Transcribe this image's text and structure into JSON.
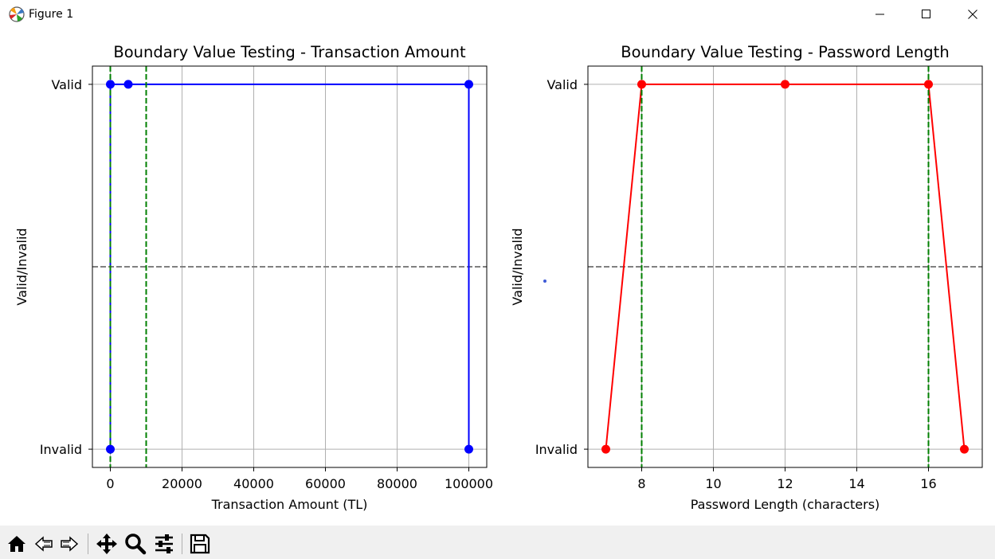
{
  "window": {
    "title": "Figure 1"
  },
  "icons": {
    "app": "matplotlib-icon",
    "minimize": "minimize-icon",
    "maximize": "maximize-icon",
    "close": "close-icon"
  },
  "toolbar": {
    "items": [
      "home-icon",
      "back-icon",
      "forward-icon",
      "pan-icon",
      "zoom-icon",
      "configure-subplots-icon",
      "save-icon"
    ]
  },
  "chart_data": [
    {
      "type": "line",
      "title": "Boundary Value Testing - Transaction Amount",
      "xlabel": "Transaction Amount (TL)",
      "ylabel": "Valid/Invalid",
      "xlim": [
        -5000,
        105000
      ],
      "ylim": [
        -0.05,
        1.05
      ],
      "xticks": [
        0,
        20000,
        40000,
        60000,
        80000,
        100000
      ],
      "yticks": [
        0,
        1
      ],
      "ytick_labels": [
        "Invalid",
        "Valid"
      ],
      "grid": true,
      "line_color": "#0000ff",
      "series": [
        {
          "x": [
            0,
            1,
            5000,
            100000,
            100001
          ],
          "y": [
            0,
            1,
            1,
            1,
            0
          ]
        }
      ],
      "vlines": [
        {
          "x": 1,
          "color": "#008000",
          "style": "dashed"
        },
        {
          "x": 10000,
          "color": "#008000",
          "style": "dashed"
        }
      ],
      "hline": {
        "y": 0.5,
        "color": "#808080",
        "style": "dashed"
      }
    },
    {
      "type": "line",
      "title": "Boundary Value Testing - Password Length",
      "xlabel": "Password Length (characters)",
      "ylabel": "Valid/Invalid",
      "xlim": [
        6.5,
        17.5
      ],
      "ylim": [
        -0.05,
        1.05
      ],
      "xticks": [
        8,
        10,
        12,
        14,
        16
      ],
      "yticks": [
        0,
        1
      ],
      "ytick_labels": [
        "Invalid",
        "Valid"
      ],
      "grid": true,
      "line_color": "#ff0000",
      "series": [
        {
          "x": [
            7,
            8,
            12,
            16,
            17
          ],
          "y": [
            0,
            1,
            1,
            1,
            0
          ]
        }
      ],
      "vlines": [
        {
          "x": 8,
          "color": "#008000",
          "style": "dashed"
        },
        {
          "x": 16,
          "color": "#008000",
          "style": "dashed"
        }
      ],
      "hline": {
        "y": 0.5,
        "color": "#808080",
        "style": "dashed"
      }
    }
  ]
}
